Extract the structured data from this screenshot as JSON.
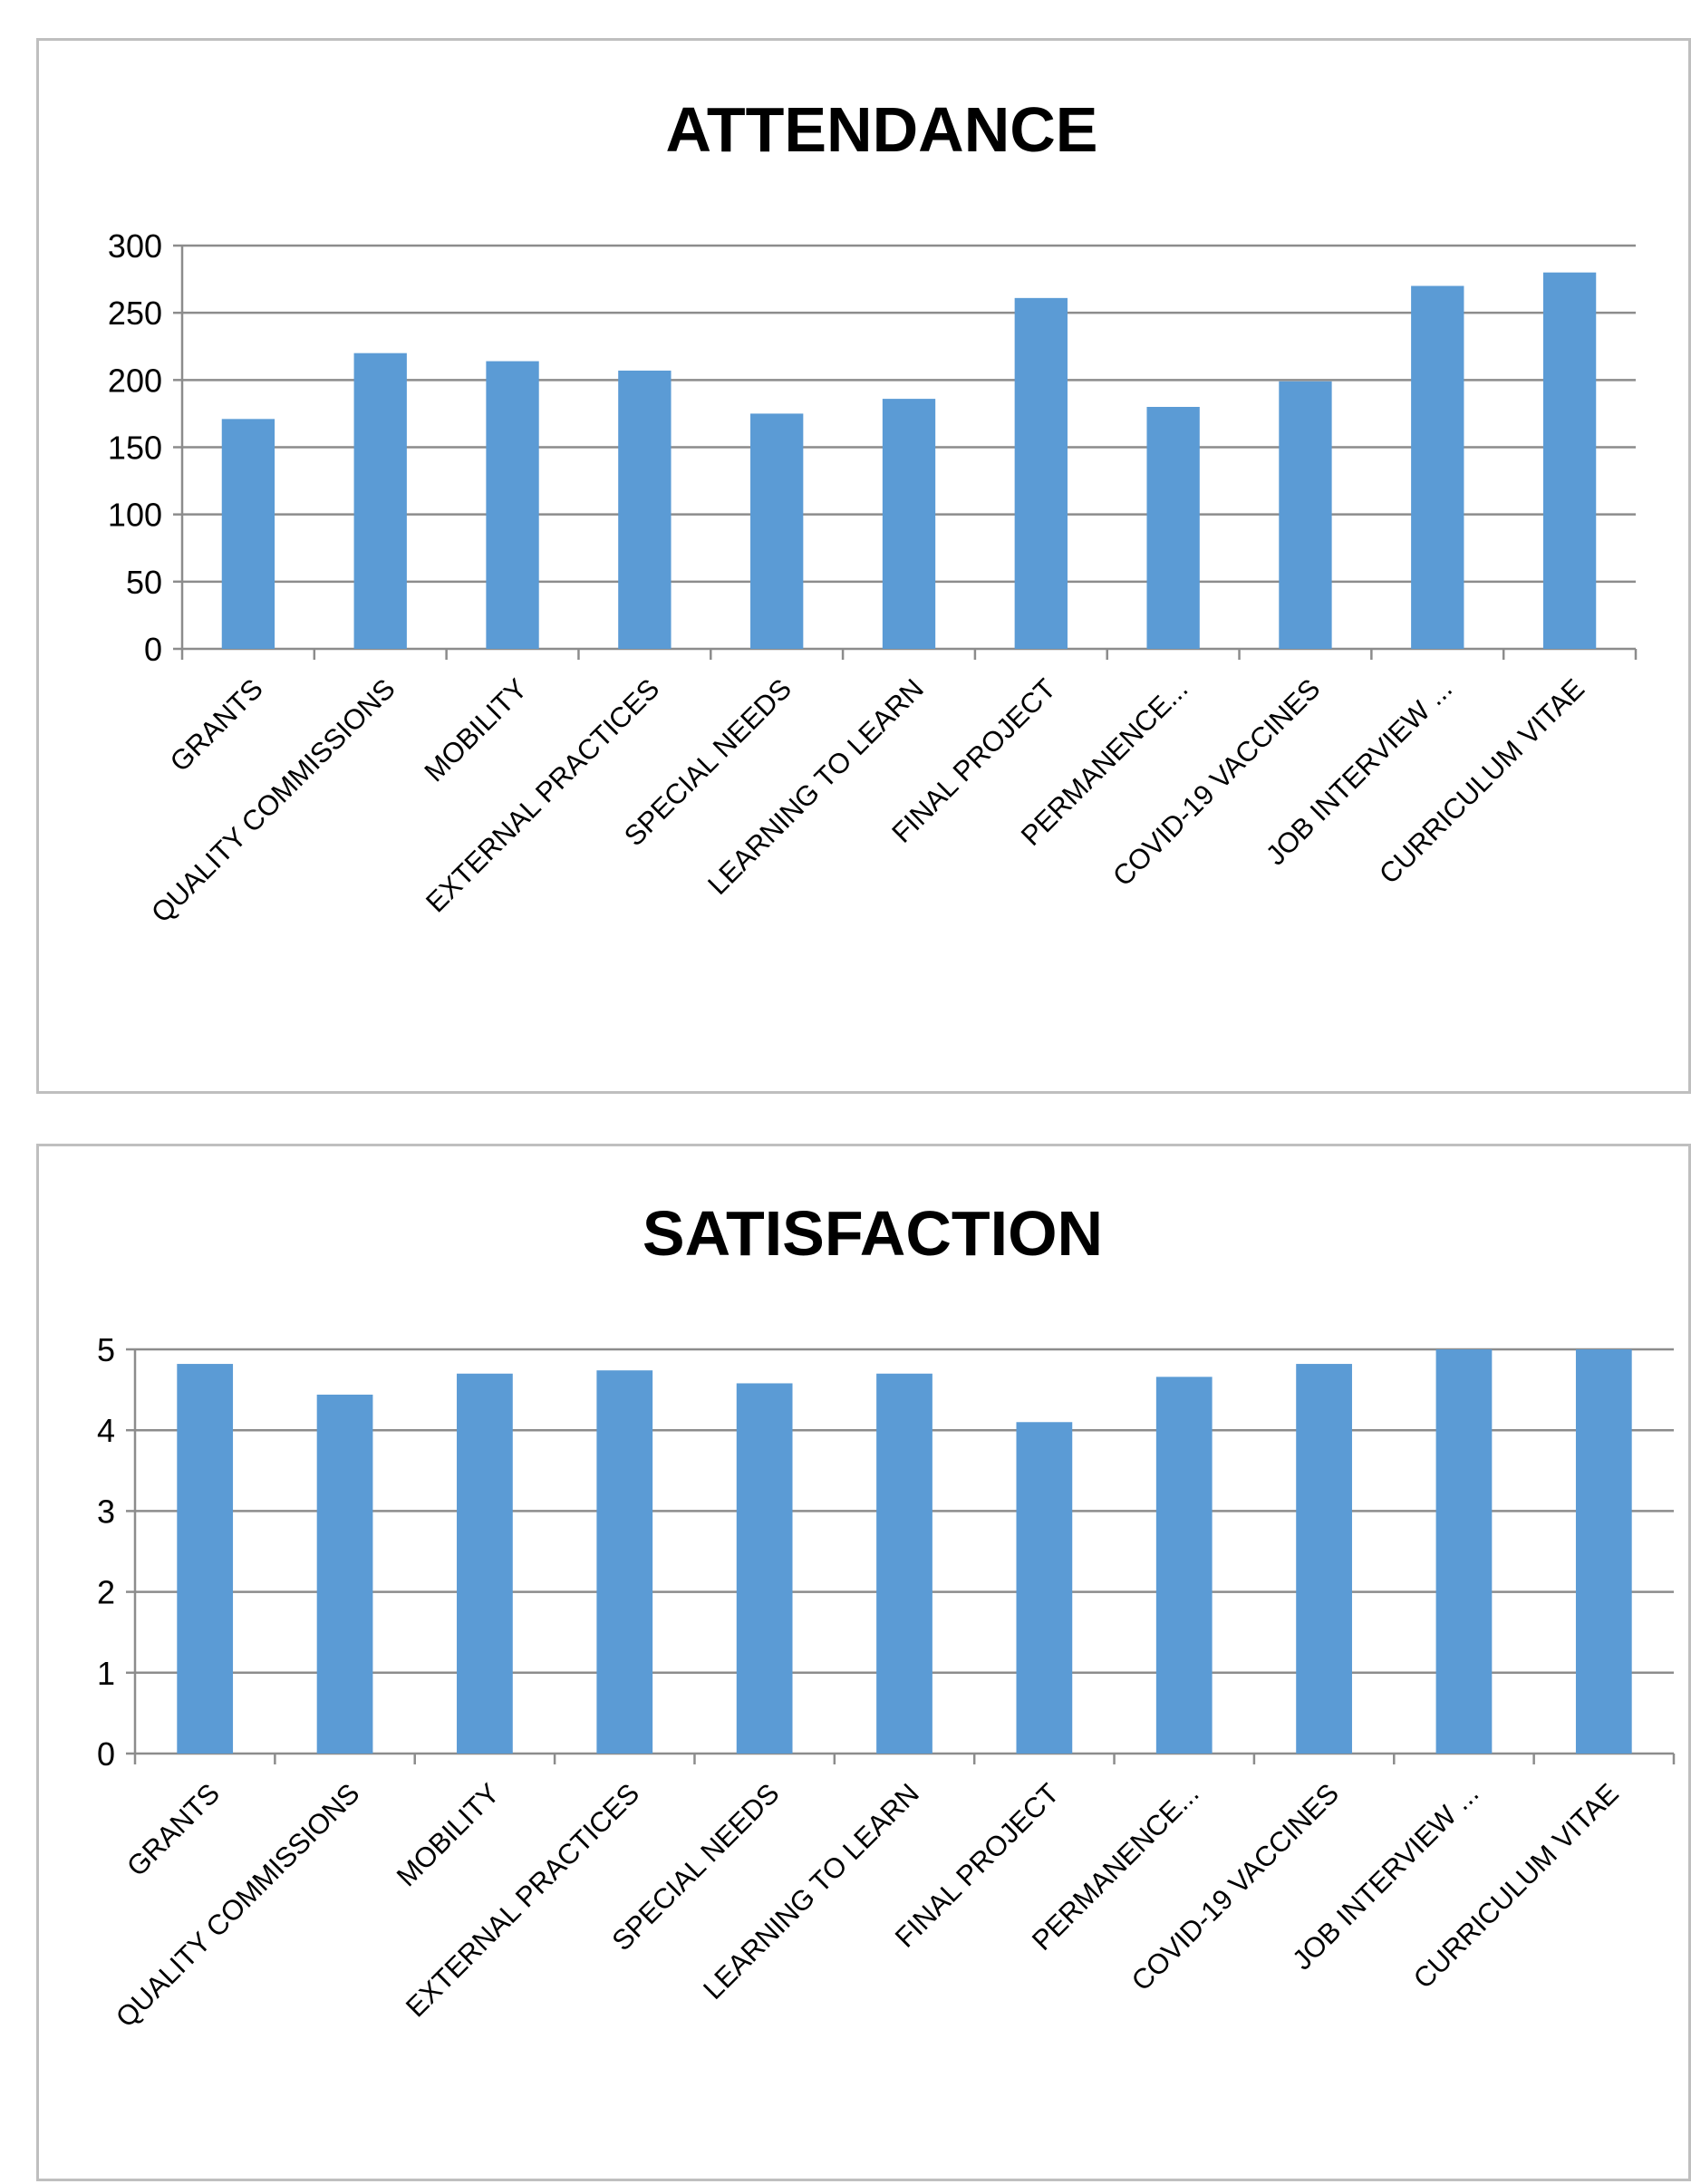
{
  "charts": [
    {
      "type": "bar",
      "title": "ATTENDANCE",
      "categories": [
        "GRANTS",
        "QUALITY COMMISSIONS",
        "MOBILITY",
        "EXTERNAL PRACTICES",
        "SPECIAL NEEDS",
        "LEARNING TO LEARN",
        "FINAL PROJECT",
        "PERMANENCE...",
        "COVID-19 VACCINES",
        "JOB INTERVIEW ...",
        "CURRICULUM VITAE"
      ],
      "values": [
        171,
        220,
        214,
        207,
        175,
        186,
        261,
        180,
        199,
        270,
        280
      ],
      "ylim": [
        0,
        300
      ],
      "yticks": [
        0,
        50,
        100,
        150,
        200,
        250,
        300
      ],
      "grid": true,
      "bar_color": "#5b9bd5"
    },
    {
      "type": "bar",
      "title": "SATISFACTION",
      "categories": [
        "GRANTS",
        "QUALITY COMMISSIONS",
        "MOBILITY",
        "EXTERNAL PRACTICES",
        "SPECIAL NEEDS",
        "LEARNING TO LEARN",
        "FINAL PROJECT",
        "PERMANENCE...",
        "COVID-19 VACCINES",
        "JOB INTERVIEW ...",
        "CURRICULUM VITAE"
      ],
      "values": [
        4.82,
        4.44,
        4.7,
        4.74,
        4.58,
        4.7,
        4.1,
        4.66,
        4.82,
        5.0,
        5.0
      ],
      "ylim": [
        0,
        5
      ],
      "yticks": [
        0,
        1,
        2,
        3,
        4,
        5
      ],
      "grid": true,
      "bar_color": "#5b9bd5"
    }
  ]
}
